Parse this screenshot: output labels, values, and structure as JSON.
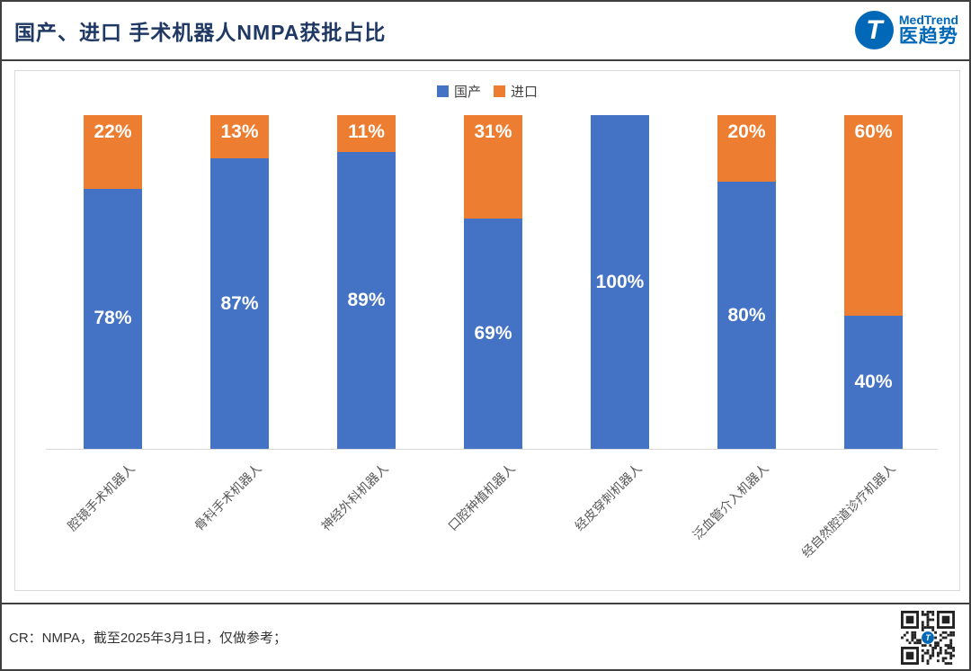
{
  "header": {
    "title": "国产、进口 手术机器人NMPA获批占比",
    "logo": {
      "letter": "T",
      "brand_en": "MedTrend",
      "brand_cn": "医趋势"
    }
  },
  "legend": [
    {
      "label": "国产",
      "color": "#4472C4"
    },
    {
      "label": "进口",
      "color": "#ED7D31"
    }
  ],
  "chart_data": {
    "type": "bar",
    "stacked": true,
    "title": "国产、进口 手术机器人NMPA获批占比",
    "categories": [
      "腔镜手术机器人",
      "骨科手术机器人",
      "神经外科机器人",
      "口腔种植机器人",
      "经皮穿刺机器人",
      "泛血管介入机器人",
      "经自然腔道诊疗机器人"
    ],
    "series": [
      {
        "name": "国产",
        "color": "#4472C4",
        "values": [
          78,
          87,
          89,
          69,
          100,
          80,
          40
        ]
      },
      {
        "name": "进口",
        "color": "#ED7D31",
        "values": [
          22,
          13,
          11,
          31,
          0,
          20,
          60
        ]
      }
    ],
    "value_suffix": "%",
    "ylim": [
      0,
      100
    ],
    "grid": false,
    "legend_position": "top-center",
    "bar_label_color": "#FFFFFF",
    "xlabel": "",
    "ylabel": ""
  },
  "colors": {
    "domestic": "#4472C4",
    "imported": "#ED7D31",
    "title": "#1F3864",
    "brand": "#0068B7"
  },
  "footer": {
    "source_note": "CR：NMPA，截至2025年3月1日，仅做参考；"
  }
}
